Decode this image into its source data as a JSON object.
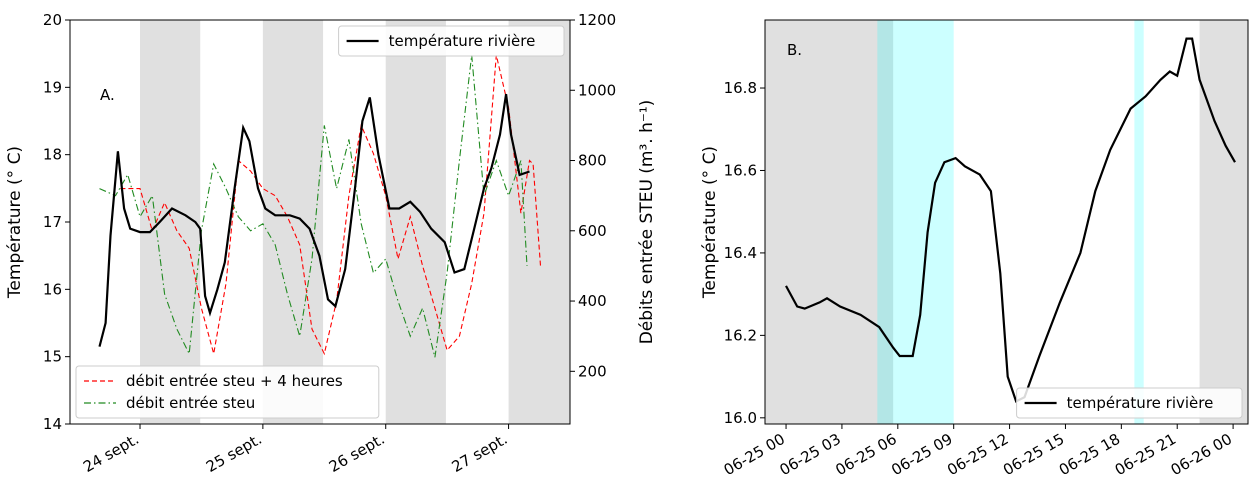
{
  "chart_data": [
    {
      "type": "line",
      "annotation": "A.",
      "ylabel": "Température (° C)",
      "y2label": "Débits entrée STEU (m³. h⁻¹)",
      "xlim": [
        23.43,
        27.5
      ],
      "xticks": [
        {
          "value": 24,
          "label": "24 sept."
        },
        {
          "value": 25,
          "label": "25 sept."
        },
        {
          "value": 26,
          "label": "26 sept."
        },
        {
          "value": 27,
          "label": "27 sept."
        }
      ],
      "ylim": [
        14,
        20
      ],
      "yticks": [
        14,
        15,
        16,
        17,
        18,
        19,
        20
      ],
      "y2lim": [
        50,
        1200
      ],
      "y2ticks": [
        200,
        400,
        600,
        800,
        1000,
        1200
      ],
      "bands": [
        {
          "range": [
            24,
            24.49
          ],
          "color": "#e0e0e0",
          "opacity": 1
        },
        {
          "range": [
            25,
            25.49
          ],
          "color": "#e0e0e0",
          "opacity": 1
        },
        {
          "range": [
            26,
            26.49
          ],
          "color": "#e0e0e0",
          "opacity": 1
        },
        {
          "range": [
            27,
            27.5
          ],
          "color": "#e0e0e0",
          "opacity": 1
        }
      ],
      "series": [
        {
          "name": "débit entrée steu + 4 heures",
          "color": "#ff0000",
          "style": "dashed",
          "axis": "y2",
          "legend": "lower left",
          "x": [
            23.84,
            24.0,
            24.1,
            24.2,
            24.3,
            24.4,
            24.5,
            24.6,
            24.7,
            24.8,
            24.9,
            25.0,
            25.1,
            25.2,
            25.3,
            25.4,
            25.5,
            25.6,
            25.7,
            25.8,
            25.9,
            26.0,
            26.1,
            26.2,
            26.3,
            26.4,
            26.5,
            26.6,
            26.7,
            26.8,
            26.9,
            27.0,
            27.1,
            27.17,
            27.2,
            27.26
          ],
          "values": [
            720,
            720,
            600,
            680,
            600,
            550,
            380,
            250,
            450,
            800,
            770,
            720,
            700,
            640,
            560,
            320,
            250,
            400,
            700,
            900,
            820,
            700,
            520,
            640,
            500,
            380,
            260,
            300,
            450,
            650,
            1100,
            950,
            650,
            800,
            790,
            500
          ]
        },
        {
          "name": "débit entrée steu",
          "color": "#228b22",
          "style": "dashdot",
          "axis": "y2",
          "legend": "lower left",
          "x": [
            23.67,
            23.8,
            23.9,
            24.0,
            24.1,
            24.2,
            24.3,
            24.4,
            24.5,
            24.6,
            24.7,
            24.8,
            24.9,
            25.0,
            25.1,
            25.2,
            25.3,
            25.4,
            25.5,
            25.6,
            25.7,
            25.8,
            25.9,
            26.0,
            26.1,
            26.2,
            26.3,
            26.4,
            26.5,
            26.6,
            26.7,
            26.8,
            26.9,
            27.0,
            27.1,
            27.15
          ],
          "values": [
            720,
            700,
            760,
            640,
            700,
            420,
            320,
            250,
            600,
            790,
            720,
            640,
            600,
            620,
            560,
            420,
            300,
            520,
            900,
            720,
            860,
            620,
            480,
            520,
            400,
            300,
            380,
            240,
            480,
            800,
            1100,
            700,
            800,
            700,
            800,
            500
          ]
        },
        {
          "name": "température rivière",
          "color": "#000000",
          "style": "solid",
          "axis": "y",
          "legend": "upper right",
          "x": [
            23.67,
            23.72,
            23.76,
            23.82,
            23.87,
            23.92,
            24.0,
            24.08,
            24.16,
            24.26,
            24.37,
            24.45,
            24.49,
            24.53,
            24.57,
            24.63,
            24.69,
            24.77,
            24.84,
            24.89,
            24.96,
            25.02,
            25.1,
            25.22,
            25.3,
            25.38,
            25.46,
            25.53,
            25.59,
            25.67,
            25.75,
            25.81,
            25.87,
            25.94,
            26.03,
            26.11,
            26.2,
            26.28,
            26.37,
            26.48,
            26.56,
            26.64,
            26.72,
            26.8,
            26.86,
            26.93,
            26.98,
            27.02,
            27.09,
            27.17
          ],
          "values": [
            15.15,
            15.5,
            16.8,
            18.05,
            17.2,
            16.9,
            16.85,
            16.85,
            17.0,
            17.2,
            17.1,
            17.0,
            16.9,
            15.9,
            15.65,
            16.0,
            16.4,
            17.5,
            18.4,
            18.2,
            17.5,
            17.2,
            17.1,
            17.1,
            17.05,
            16.9,
            16.5,
            15.85,
            15.75,
            16.3,
            17.5,
            18.5,
            18.85,
            18.0,
            17.2,
            17.2,
            17.3,
            17.15,
            16.9,
            16.7,
            16.25,
            16.3,
            16.9,
            17.5,
            17.8,
            18.3,
            18.9,
            18.3,
            17.7,
            17.75
          ]
        }
      ]
    },
    {
      "type": "line",
      "annotation": "B.",
      "ylabel": "Température (° C)",
      "xlim": [
        -1.13,
        24.8
      ],
      "xticks": [
        {
          "value": 0,
          "label": "06-25 00"
        },
        {
          "value": 3,
          "label": "06-25 03"
        },
        {
          "value": 6,
          "label": "06-25 06"
        },
        {
          "value": 9,
          "label": "06-25 09"
        },
        {
          "value": 12,
          "label": "06-25 12"
        },
        {
          "value": 15,
          "label": "06-25 15"
        },
        {
          "value": 18,
          "label": "06-25 18"
        },
        {
          "value": 21,
          "label": "06-25 21"
        },
        {
          "value": 24,
          "label": "06-26 00"
        }
      ],
      "ylim": [
        15.985,
        16.965
      ],
      "yticks": [
        {
          "value": 16,
          "label": "16.0"
        },
        16.2,
        16.4,
        16.6,
        16.8
      ],
      "bands": [
        {
          "range": [
            -1.13,
            5.75
          ],
          "color": "#e0e0e0",
          "opacity": 1
        },
        {
          "range": [
            4.9,
            9.0
          ],
          "color": "#00ffff",
          "opacity": 0.2
        },
        {
          "range": [
            18.7,
            19.2
          ],
          "color": "#00ffff",
          "opacity": 0.2
        },
        {
          "range": [
            22.2,
            24.8
          ],
          "color": "#e0e0e0",
          "opacity": 1
        }
      ],
      "series": [
        {
          "name": "température rivière",
          "color": "#000000",
          "style": "solid",
          "axis": "y",
          "legend": "lower right",
          "x": [
            0,
            0.6,
            1.0,
            1.8,
            2.2,
            2.9,
            4.0,
            5.0,
            5.75,
            6.1,
            6.8,
            7.2,
            7.6,
            8.0,
            8.5,
            9.1,
            9.6,
            10.4,
            11.0,
            11.5,
            11.9,
            12.35,
            12.8,
            13.6,
            14.7,
            15.8,
            16.6,
            17.4,
            18.5,
            19.3,
            20.1,
            20.6,
            21.0,
            21.5,
            21.8,
            22.2,
            23.0,
            23.6,
            24.1
          ],
          "values": [
            16.32,
            16.27,
            16.265,
            16.28,
            16.29,
            16.27,
            16.25,
            16.22,
            16.17,
            16.15,
            16.15,
            16.25,
            16.45,
            16.57,
            16.62,
            16.63,
            16.61,
            16.59,
            16.55,
            16.35,
            16.1,
            16.04,
            16.05,
            16.15,
            16.28,
            16.4,
            16.55,
            16.65,
            16.75,
            16.78,
            16.82,
            16.84,
            16.83,
            16.92,
            16.92,
            16.82,
            16.72,
            16.66,
            16.62
          ]
        }
      ]
    }
  ]
}
